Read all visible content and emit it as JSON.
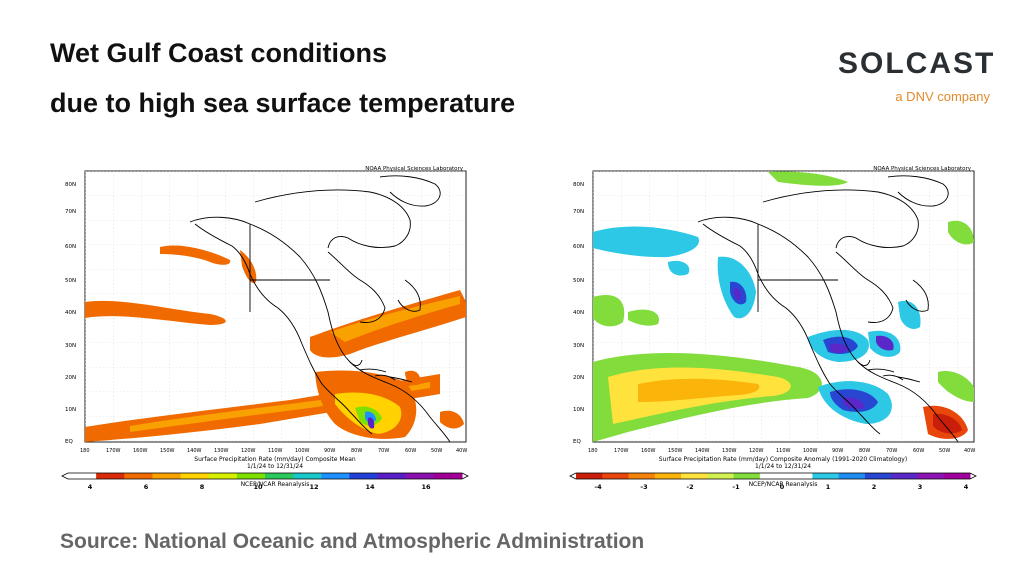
{
  "title": {
    "line1": "Wet Gulf Coast conditions",
    "line2": "due to high sea surface temperature"
  },
  "logo": {
    "wordmark": "SOLCAST",
    "tagline": "a DNV company",
    "colors": {
      "text": "#2a2f33",
      "accent": "#e28a2b"
    }
  },
  "maps": [
    {
      "credit": "NOAA Physical Sciences Laboratory",
      "lat_labels": [
        "80N",
        "70N",
        "60N",
        "50N",
        "40N",
        "30N",
        "20N",
        "10N",
        "EQ"
      ],
      "lon_labels": [
        "180",
        "170W",
        "160W",
        "150W",
        "140W",
        "130W",
        "120W",
        "110W",
        "100W",
        "90W",
        "80W",
        "70W",
        "60W",
        "50W",
        "40W"
      ],
      "caption1": "Surface Precipitation Rate (mm/day) Composite Mean",
      "caption2": "1/1/24 to 12/31/24",
      "caption3": "NCEP/NCAR Reanalysis",
      "colorbar_ticks": [
        "4",
        "6",
        "8",
        "10",
        "12",
        "14",
        "16"
      ],
      "colorbar_colors": [
        "#ffffff",
        "#d92b0a",
        "#f06a00",
        "#f9a100",
        "#ffd200",
        "#d6f000",
        "#7ee000",
        "#2bc85c",
        "#19c8c8",
        "#1e90ff",
        "#2240d8",
        "#5a1ec8",
        "#8a10b0",
        "#a00096"
      ]
    },
    {
      "credit": "NOAA Physical Sciences Laboratory",
      "lat_labels": [
        "80N",
        "70N",
        "60N",
        "50N",
        "40N",
        "30N",
        "20N",
        "10N",
        "EQ"
      ],
      "lon_labels": [
        "180",
        "170W",
        "160W",
        "150W",
        "140W",
        "130W",
        "120W",
        "110W",
        "100W",
        "90W",
        "80W",
        "70W",
        "60W",
        "50W",
        "40W"
      ],
      "caption1": "Surface Precipitation Rate (mm/day) Composite Anomaly (1991-2020 Climatology)",
      "caption2": "1/1/24 to 12/31/24",
      "caption3": "NCEP/NCAR Reanalysis",
      "colorbar_ticks": [
        "-4",
        "-3",
        "-2",
        "-1",
        "0",
        "1",
        "2",
        "3",
        "4"
      ],
      "colorbar_colors": [
        "#c81e0a",
        "#e8460a",
        "#f5820a",
        "#fbb40a",
        "#ffe23c",
        "#d2f050",
        "#82dc3c",
        "#ffffff",
        "#ffffff",
        "#2cc8e6",
        "#1e8cf0",
        "#2846d2",
        "#5a28c8",
        "#8c14b4",
        "#a0009b"
      ]
    }
  ],
  "source": "Source: National Oceanic and Atmospheric Administration"
}
